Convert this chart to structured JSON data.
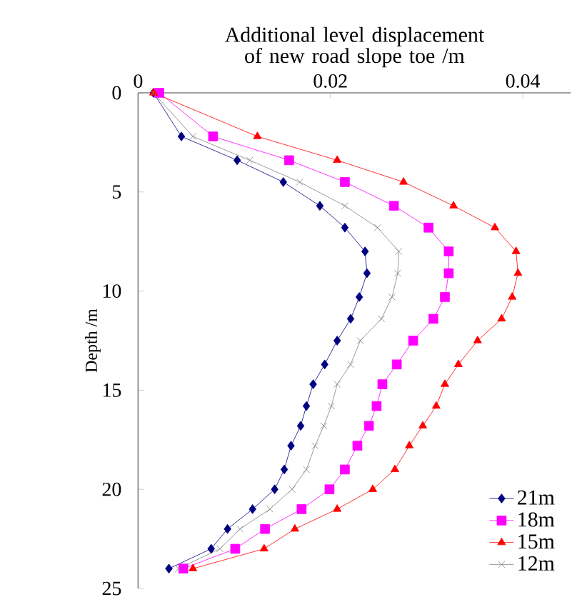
{
  "chart_data": {
    "type": "line",
    "xlabel": "Additional level displacement of new road slope toe /m",
    "ylabel": "Depth /m",
    "xlim": [
      0,
      0.045
    ],
    "xticks": [
      0,
      0.02,
      0.04
    ],
    "ylim": [
      25,
      0
    ],
    "yticks": [
      0,
      5,
      10,
      15,
      20,
      25
    ],
    "legend": "bottom right",
    "grid": false,
    "line_style": "solid",
    "series": [
      {
        "name": "21m",
        "color": "#000080",
        "marker": "diamond",
        "x": [
          0.0016,
          0.0045,
          0.0103,
          0.0151,
          0.0189,
          0.0215,
          0.0236,
          0.0238,
          0.023,
          0.0221,
          0.0207,
          0.0194,
          0.0182,
          0.0175,
          0.0169,
          0.0159,
          0.0152,
          0.0142,
          0.0119,
          0.0093,
          0.0076,
          0.0032
        ],
        "values": [
          0,
          2.2,
          3.4,
          4.5,
          5.7,
          6.8,
          8.0,
          9.1,
          10.3,
          11.4,
          12.5,
          13.7,
          14.7,
          15.8,
          16.8,
          17.8,
          19,
          20,
          21,
          22,
          23,
          24
        ]
      },
      {
        "name": "18m",
        "color": "#ff00ff",
        "marker": "square",
        "x": [
          0.0022,
          0.0078,
          0.0157,
          0.0215,
          0.0266,
          0.0302,
          0.0323,
          0.0323,
          0.0319,
          0.0307,
          0.0286,
          0.0269,
          0.0254,
          0.0248,
          0.024,
          0.0228,
          0.0215,
          0.0199,
          0.017,
          0.0132,
          0.0101,
          0.0047
        ],
        "values": [
          0,
          2.2,
          3.4,
          4.5,
          5.7,
          6.8,
          8.0,
          9.1,
          10.3,
          11.4,
          12.5,
          13.7,
          14.7,
          15.8,
          16.8,
          17.8,
          19,
          20,
          21,
          22,
          23,
          24
        ]
      },
      {
        "name": "15m",
        "color": "#ff0000",
        "marker": "triangle",
        "x": [
          0.0016,
          0.0124,
          0.0207,
          0.0276,
          0.0328,
          0.0371,
          0.0393,
          0.0395,
          0.0389,
          0.0378,
          0.0353,
          0.0333,
          0.0319,
          0.031,
          0.0296,
          0.0282,
          0.0267,
          0.0244,
          0.0207,
          0.0163,
          0.0131,
          0.0057
        ],
        "values": [
          0,
          2.2,
          3.4,
          4.5,
          5.7,
          6.8,
          8.0,
          9.1,
          10.3,
          11.4,
          12.5,
          13.7,
          14.7,
          15.8,
          16.8,
          17.8,
          19,
          20,
          21,
          22,
          23,
          24
        ]
      },
      {
        "name": "12m",
        "color": "#808080",
        "marker": "cross",
        "x": [
          0.0016,
          0.0057,
          0.0116,
          0.0168,
          0.0215,
          0.0249,
          0.0271,
          0.027,
          0.0264,
          0.0253,
          0.0231,
          0.0221,
          0.0207,
          0.0201,
          0.0193,
          0.0184,
          0.0175,
          0.016,
          0.0137,
          0.0106,
          0.0085,
          0.0042
        ],
        "values": [
          0,
          2.2,
          3.4,
          4.5,
          5.7,
          6.8,
          8.0,
          9.1,
          10.3,
          11.4,
          12.5,
          13.7,
          14.7,
          15.8,
          16.8,
          17.8,
          19,
          20,
          21,
          22,
          23,
          24
        ]
      }
    ]
  }
}
